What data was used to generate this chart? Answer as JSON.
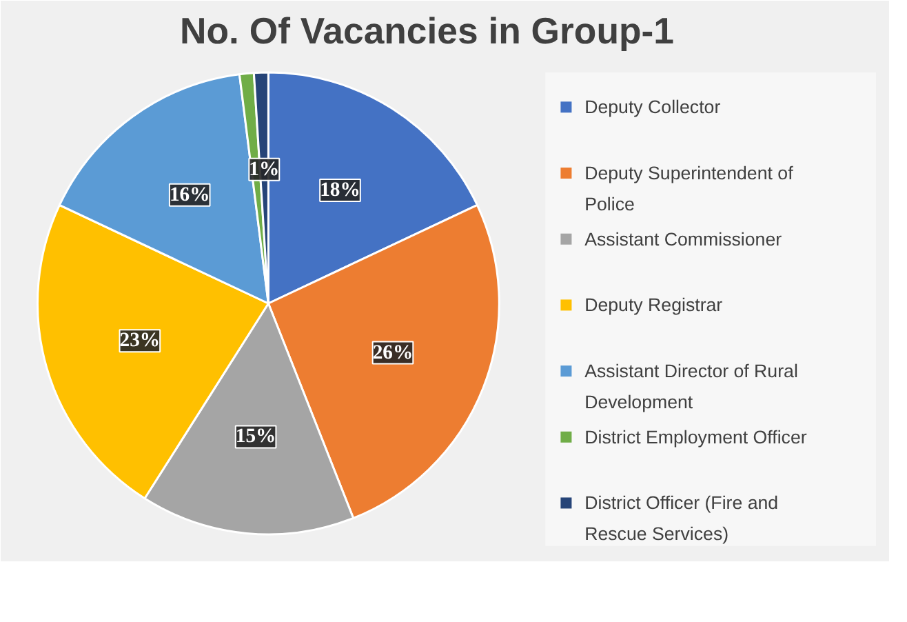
{
  "chart_data": {
    "type": "pie",
    "title": "No. Of Vacancies in Group-1",
    "categories": [
      "Deputy Collector",
      "Deputy Superintendent of Police",
      "Assistant Commissioner",
      "Deputy Registrar",
      "Assistant Director of Rural Development",
      "District Employment Officer",
      "District Officer (Fire and Rescue Services)"
    ],
    "values": [
      18,
      26,
      15,
      23,
      16,
      1,
      1
    ],
    "value_labels": [
      "18%",
      "26%",
      "15%",
      "23%",
      "16%",
      null,
      "1%"
    ],
    "colors": [
      "#4472c4",
      "#ed7d31",
      "#a5a5a5",
      "#ffc000",
      "#5b9bd5",
      "#70ad47",
      "#264478"
    ],
    "legend": "right"
  }
}
